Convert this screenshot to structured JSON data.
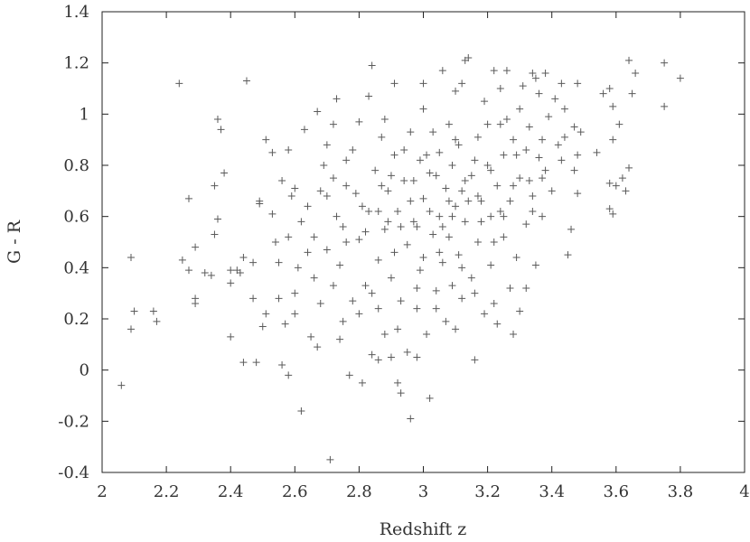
{
  "chart_data": {
    "type": "scatter",
    "title": "",
    "xlabel": "Redshift z",
    "ylabel": "G - R",
    "xlim": [
      2,
      4
    ],
    "ylim": [
      -0.4,
      1.4
    ],
    "xticks": [
      "2",
      "2.2",
      "2.4",
      "2.6",
      "2.8",
      "3",
      "3.2",
      "3.4",
      "3.6",
      "3.8",
      "4"
    ],
    "yticks": [
      "-0.4",
      "-0.2",
      "0",
      "0.2",
      "0.4",
      "0.6",
      "0.8",
      "1",
      "1.2",
      "1.4"
    ],
    "grid": false,
    "legend": "none",
    "marker": "plus",
    "marker_color": "#5a5a5a",
    "series": [
      {
        "points": [
          [
            2.06,
            -0.06
          ],
          [
            2.09,
            0.16
          ],
          [
            2.09,
            0.44
          ],
          [
            2.1,
            0.23
          ],
          [
            2.16,
            0.23
          ],
          [
            2.17,
            0.19
          ],
          [
            2.24,
            1.12
          ],
          [
            2.25,
            0.43
          ],
          [
            2.27,
            0.67
          ],
          [
            2.27,
            0.39
          ],
          [
            2.29,
            0.26
          ],
          [
            2.29,
            0.28
          ],
          [
            2.29,
            0.48
          ],
          [
            2.32,
            0.38
          ],
          [
            2.34,
            0.37
          ],
          [
            2.35,
            0.72
          ],
          [
            2.35,
            0.53
          ],
          [
            2.36,
            0.59
          ],
          [
            2.36,
            0.98
          ],
          [
            2.37,
            0.94
          ],
          [
            2.38,
            0.77
          ],
          [
            2.4,
            0.39
          ],
          [
            2.4,
            0.34
          ],
          [
            2.4,
            0.13
          ],
          [
            2.42,
            0.39
          ],
          [
            2.43,
            0.38
          ],
          [
            2.44,
            0.44
          ],
          [
            2.44,
            0.03
          ],
          [
            2.45,
            1.13
          ],
          [
            2.47,
            0.42
          ],
          [
            2.47,
            0.28
          ],
          [
            2.48,
            0.03
          ],
          [
            2.49,
            0.65
          ],
          [
            2.49,
            0.66
          ],
          [
            2.5,
            0.17
          ],
          [
            2.51,
            0.9
          ],
          [
            2.51,
            0.22
          ],
          [
            2.53,
            0.61
          ],
          [
            2.53,
            0.85
          ],
          [
            2.54,
            0.5
          ],
          [
            2.55,
            0.42
          ],
          [
            2.55,
            0.28
          ],
          [
            2.56,
            0.02
          ],
          [
            2.57,
            0.18
          ],
          [
            2.58,
            0.86
          ],
          [
            2.58,
            -0.02
          ],
          [
            2.59,
            0.68
          ],
          [
            2.6,
            0.3
          ],
          [
            2.6,
            0.71
          ],
          [
            2.61,
            0.4
          ],
          [
            2.62,
            -0.16
          ],
          [
            2.63,
            0.94
          ],
          [
            2.64,
            0.64
          ],
          [
            2.65,
            0.13
          ],
          [
            2.66,
            0.52
          ],
          [
            2.67,
            1.01
          ],
          [
            2.67,
            0.09
          ],
          [
            2.68,
            0.7
          ],
          [
            2.7,
            0.47
          ],
          [
            2.7,
            0.88
          ],
          [
            2.71,
            -0.35
          ],
          [
            2.72,
            0.75
          ],
          [
            2.73,
            0.6
          ],
          [
            2.73,
            1.06
          ],
          [
            2.74,
            0.41
          ],
          [
            2.75,
            0.19
          ],
          [
            2.76,
            0.82
          ],
          [
            2.76,
            0.5
          ],
          [
            2.77,
            -0.02
          ],
          [
            2.78,
            0.27
          ],
          [
            2.79,
            0.69
          ],
          [
            2.8,
            0.51
          ],
          [
            2.8,
            0.97
          ],
          [
            2.81,
            -0.05
          ],
          [
            2.82,
            0.33
          ],
          [
            2.83,
            1.07
          ],
          [
            2.83,
            0.62
          ],
          [
            2.84,
            1.19
          ],
          [
            2.84,
            0.06
          ],
          [
            2.85,
            0.78
          ],
          [
            2.86,
            0.43
          ],
          [
            2.86,
            0.04
          ],
          [
            2.87,
            0.91
          ],
          [
            2.88,
            0.55
          ],
          [
            2.88,
            0.14
          ],
          [
            2.89,
            0.7
          ],
          [
            2.9,
            0.36
          ],
          [
            2.9,
            0.05
          ],
          [
            2.91,
            1.12
          ],
          [
            2.91,
            0.84
          ],
          [
            2.92,
            0.62
          ],
          [
            2.92,
            -0.05
          ],
          [
            2.93,
            0.27
          ],
          [
            2.93,
            -0.09
          ],
          [
            2.94,
            0.74
          ],
          [
            2.95,
            0.49
          ],
          [
            2.95,
            0.07
          ],
          [
            2.96,
            0.93
          ],
          [
            2.96,
            -0.19
          ],
          [
            2.97,
            0.58
          ],
          [
            2.98,
            0.24
          ],
          [
            2.98,
            0.05
          ],
          [
            2.99,
            0.82
          ],
          [
            2.99,
            0.39
          ],
          [
            3.0,
            0.67
          ],
          [
            3.0,
            1.02
          ],
          [
            3.01,
            0.14
          ],
          [
            3.02,
            0.77
          ],
          [
            3.02,
            -0.11
          ],
          [
            3.03,
            0.53
          ],
          [
            3.03,
            0.93
          ],
          [
            3.04,
            0.31
          ],
          [
            3.05,
            0.85
          ],
          [
            3.05,
            0.6
          ],
          [
            3.06,
            1.17
          ],
          [
            3.06,
            0.42
          ],
          [
            3.07,
            0.71
          ],
          [
            3.07,
            0.19
          ],
          [
            3.08,
            0.96
          ],
          [
            3.08,
            0.52
          ],
          [
            3.09,
            0.8
          ],
          [
            3.09,
            0.33
          ],
          [
            3.1,
            0.64
          ],
          [
            3.1,
            1.09
          ],
          [
            3.11,
            0.45
          ],
          [
            3.11,
            0.88
          ],
          [
            3.12,
            0.7
          ],
          [
            3.12,
            0.28
          ],
          [
            3.13,
            1.21
          ],
          [
            3.13,
            0.58
          ],
          [
            3.14,
            1.22
          ],
          [
            3.15,
            0.76
          ],
          [
            3.15,
            0.36
          ],
          [
            3.16,
            0.04
          ],
          [
            3.17,
            0.91
          ],
          [
            3.17,
            0.5
          ],
          [
            3.18,
            0.66
          ],
          [
            3.19,
            0.22
          ],
          [
            3.19,
            1.05
          ],
          [
            3.2,
            0.8
          ],
          [
            3.21,
            0.41
          ],
          [
            3.21,
            0.6
          ],
          [
            3.22,
            1.17
          ],
          [
            3.23,
            0.72
          ],
          [
            3.23,
            0.18
          ],
          [
            3.24,
            0.96
          ],
          [
            3.25,
            0.52
          ],
          [
            3.25,
            0.84
          ],
          [
            3.26,
            1.17
          ],
          [
            3.27,
            0.32
          ],
          [
            3.27,
            0.66
          ],
          [
            3.28,
            0.9
          ],
          [
            3.29,
            0.44
          ],
          [
            3.3,
            0.75
          ],
          [
            3.3,
            0.23
          ],
          [
            3.31,
            1.11
          ],
          [
            3.32,
            0.57
          ],
          [
            3.32,
            0.32
          ],
          [
            3.33,
            0.95
          ],
          [
            3.34,
            0.68
          ],
          [
            3.35,
            0.41
          ],
          [
            3.35,
            1.14
          ],
          [
            3.36,
            0.83
          ],
          [
            3.37,
            0.6
          ],
          [
            3.37,
            0.75
          ],
          [
            3.38,
            1.16
          ],
          [
            3.39,
            0.99
          ],
          [
            3.4,
            0.7
          ],
          [
            3.41,
            1.06
          ],
          [
            3.42,
            0.88
          ],
          [
            3.43,
            1.12
          ],
          [
            3.43,
            0.82
          ],
          [
            3.44,
            0.91
          ],
          [
            3.45,
            0.45
          ],
          [
            3.46,
            0.55
          ],
          [
            3.47,
            0.78
          ],
          [
            3.47,
            0.95
          ],
          [
            3.48,
            0.69
          ],
          [
            3.48,
            1.12
          ],
          [
            3.48,
            0.84
          ],
          [
            3.49,
            0.93
          ],
          [
            3.54,
            0.85
          ],
          [
            3.56,
            1.08
          ],
          [
            3.58,
            1.1
          ],
          [
            3.58,
            0.73
          ],
          [
            3.58,
            0.63
          ],
          [
            3.59,
            0.61
          ],
          [
            3.59,
            0.9
          ],
          [
            3.59,
            1.03
          ],
          [
            3.6,
            0.72
          ],
          [
            3.61,
            0.96
          ],
          [
            3.62,
            0.75
          ],
          [
            3.63,
            0.7
          ],
          [
            3.64,
            1.21
          ],
          [
            3.64,
            0.79
          ],
          [
            3.65,
            1.08
          ],
          [
            3.66,
            1.16
          ],
          [
            3.75,
            1.2
          ],
          [
            3.75,
            1.03
          ],
          [
            3.8,
            1.14
          ],
          [
            2.56,
            0.74
          ],
          [
            2.62,
            0.58
          ],
          [
            2.66,
            0.36
          ],
          [
            2.69,
            0.8
          ],
          [
            2.72,
            0.33
          ],
          [
            2.75,
            0.56
          ],
          [
            2.78,
            0.86
          ],
          [
            2.81,
            0.64
          ],
          [
            2.84,
            0.3
          ],
          [
            2.87,
            0.72
          ],
          [
            2.89,
            0.58
          ],
          [
            2.91,
            0.46
          ],
          [
            2.94,
            0.86
          ],
          [
            2.96,
            0.66
          ],
          [
            2.98,
            0.56
          ],
          [
            3.0,
            0.44
          ],
          [
            3.02,
            0.62
          ],
          [
            3.04,
            0.76
          ],
          [
            3.06,
            0.56
          ],
          [
            3.08,
            0.66
          ],
          [
            3.1,
            0.9
          ],
          [
            3.12,
            0.4
          ],
          [
            3.14,
            0.66
          ],
          [
            3.16,
            0.82
          ],
          [
            3.18,
            0.58
          ],
          [
            3.2,
            0.96
          ],
          [
            3.22,
            0.5
          ],
          [
            3.24,
            0.62
          ],
          [
            3.26,
            0.98
          ],
          [
            3.28,
            0.72
          ],
          [
            3.3,
            1.02
          ],
          [
            3.32,
            0.86
          ],
          [
            3.34,
            0.62
          ],
          [
            3.36,
            1.08
          ],
          [
            3.38,
            0.78
          ],
          [
            2.64,
            0.46
          ],
          [
            2.7,
            0.68
          ],
          [
            2.76,
            0.72
          ],
          [
            2.82,
            0.54
          ],
          [
            2.86,
            0.62
          ],
          [
            2.9,
            0.76
          ],
          [
            2.93,
            0.56
          ],
          [
            2.97,
            0.74
          ],
          [
            3.01,
            0.84
          ],
          [
            3.05,
            0.46
          ],
          [
            3.09,
            0.6
          ],
          [
            3.13,
            0.74
          ],
          [
            3.17,
            0.68
          ],
          [
            3.21,
            0.78
          ],
          [
            3.25,
            0.6
          ],
          [
            3.29,
            0.84
          ],
          [
            3.33,
            0.74
          ],
          [
            3.37,
            0.9
          ],
          [
            2.6,
            0.22
          ],
          [
            2.68,
            0.26
          ],
          [
            2.74,
            0.12
          ],
          [
            2.8,
            0.22
          ],
          [
            2.86,
            0.24
          ],
          [
            2.92,
            0.16
          ],
          [
            2.98,
            0.32
          ],
          [
            3.04,
            0.24
          ],
          [
            3.1,
            0.16
          ],
          [
            3.16,
            0.3
          ],
          [
            3.22,
            0.26
          ],
          [
            3.28,
            0.14
          ],
          [
            2.58,
            0.52
          ],
          [
            2.72,
            0.96
          ],
          [
            2.88,
            0.98
          ],
          [
            3.0,
            1.12
          ],
          [
            3.12,
            1.12
          ],
          [
            3.24,
            1.1
          ],
          [
            3.34,
            1.16
          ],
          [
            3.44,
            1.02
          ]
        ]
      }
    ]
  }
}
